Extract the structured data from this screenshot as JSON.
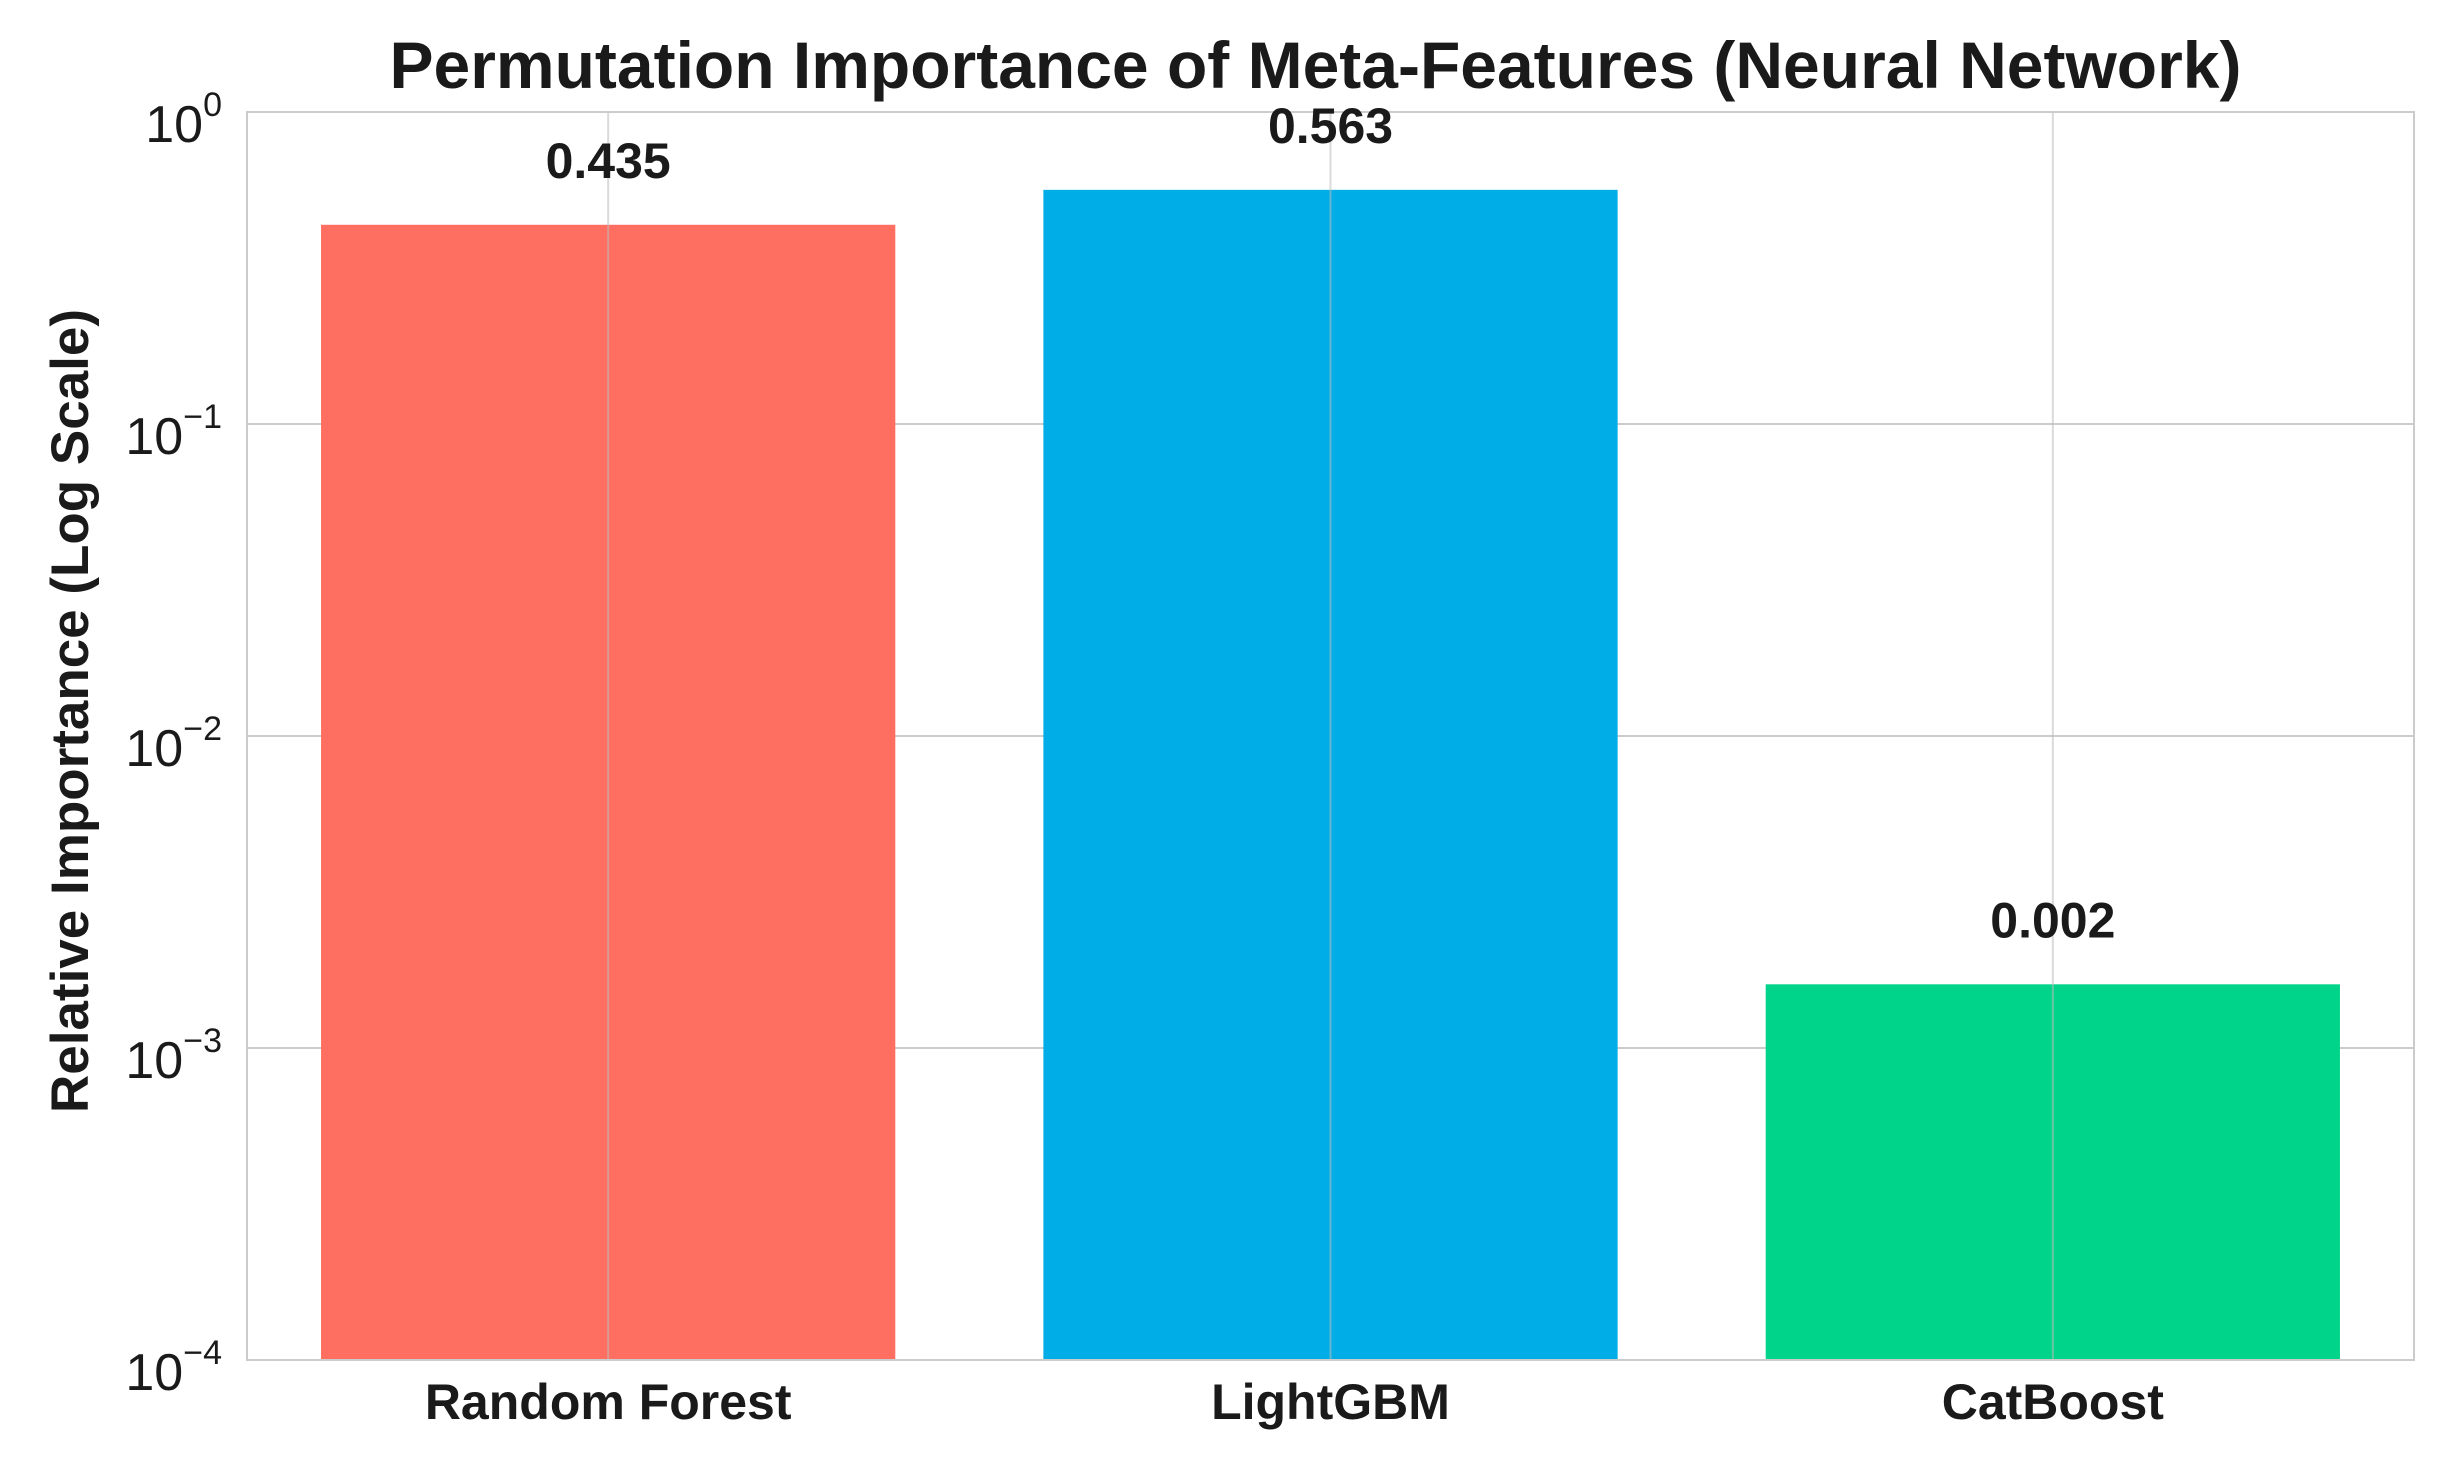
{
  "chart_data": {
    "type": "bar",
    "title": "Permutation Importance of Meta-Features (Neural Network)",
    "xlabel": "",
    "ylabel": "Relative Importance (Log Scale)",
    "yscale": "log",
    "ylim": [
      0.0001,
      1
    ],
    "yticks": [
      {
        "base": "10",
        "exp": "−4"
      },
      {
        "base": "10",
        "exp": "−3"
      },
      {
        "base": "10",
        "exp": "−2"
      },
      {
        "base": "10",
        "exp": "−1"
      },
      {
        "base": "10",
        "exp": "0"
      }
    ],
    "categories": [
      "Random Forest",
      "LightGBM",
      "CatBoost"
    ],
    "values": [
      0.435,
      0.563,
      0.0016
    ],
    "data_labels": [
      "0.435",
      "0.563",
      "0.002"
    ],
    "colors": [
      "#ff6f61",
      "#00ade6",
      "#00d48a"
    ],
    "grid": true,
    "legend": "none"
  }
}
